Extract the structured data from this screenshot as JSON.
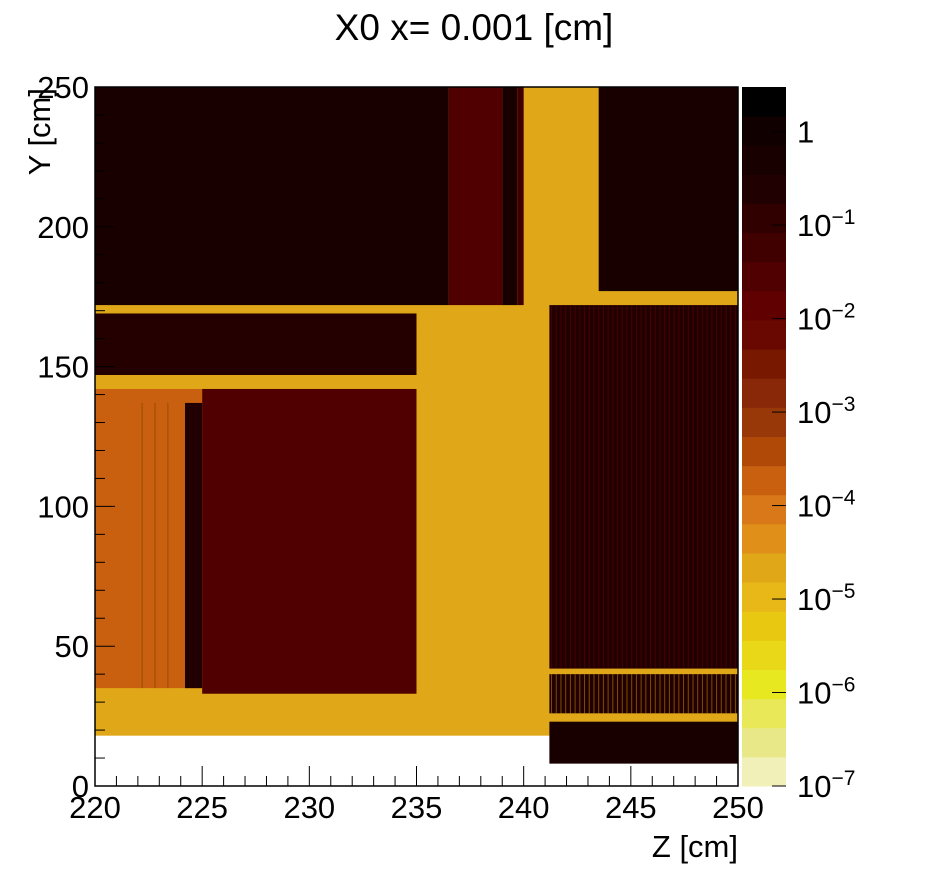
{
  "chart_data": {
    "type": "heatmap",
    "title": "X0 x=  0.001 [cm]",
    "xlabel": "Z [cm]",
    "ylabel": "Y [cm]",
    "xlim": [
      220,
      250
    ],
    "ylim": [
      0,
      250
    ],
    "x_ticks": [
      "220",
      "225",
      "230",
      "235",
      "240",
      "245",
      "250"
    ],
    "x_tick_values": [
      220,
      225,
      230,
      235,
      240,
      245,
      250
    ],
    "y_ticks": [
      "0",
      "50",
      "100",
      "150",
      "200",
      "250"
    ],
    "y_tick_values": [
      0,
      50,
      100,
      150,
      200,
      250
    ],
    "colorbar": {
      "scale": "log",
      "range": [
        1e-07,
        3
      ],
      "tick_values": [
        1e-07,
        1e-06,
        1e-05,
        0.0001,
        0.001,
        0.01,
        0.1,
        1
      ],
      "tick_labels": [
        {
          "base": "10",
          "exp": "−7"
        },
        {
          "base": "10",
          "exp": "−6"
        },
        {
          "base": "10",
          "exp": "−5"
        },
        {
          "base": "10",
          "exp": "−4"
        },
        {
          "base": "10",
          "exp": "−3"
        },
        {
          "base": "10",
          "exp": "−2"
        },
        {
          "base": "10",
          "exp": "−1"
        },
        {
          "base": "1",
          "exp": ""
        }
      ],
      "colors": [
        "#f0f0b8",
        "#e8e888",
        "#e8e858",
        "#e8e820",
        "#e8d818",
        "#e8c810",
        "#e8b818",
        "#e0a818",
        "#e09018",
        "#d87818",
        "#c86010",
        "#b04808",
        "#983808",
        "#882808",
        "#781800",
        "#680800",
        "#600000",
        "#500000",
        "#400000",
        "#300000",
        "#200000",
        "#180000",
        "#100000",
        "#000000"
      ]
    },
    "regions": [
      {
        "z": [
          220,
          250
        ],
        "y": [
          8,
          18
        ],
        "value": "empty"
      },
      {
        "z": [
          220,
          250
        ],
        "y": [
          18,
          250
        ],
        "value": 3e-05
      },
      {
        "z": [
          220,
          235
        ],
        "y": [
          172,
          250
        ],
        "value": 0.5
      },
      {
        "z": [
          235,
          236.5
        ],
        "y": [
          172,
          250
        ],
        "value": 0.5
      },
      {
        "z": [
          236.5,
          239
        ],
        "y": [
          172,
          250
        ],
        "value": 0.03
      },
      {
        "z": [
          239,
          239.7
        ],
        "y": [
          172,
          250
        ],
        "value": 0.5
      },
      {
        "z": [
          239.7,
          240
        ],
        "y": [
          172,
          250
        ],
        "value": 0.05
      },
      {
        "z": [
          243.5,
          250
        ],
        "y": [
          177,
          250
        ],
        "value": 0.5
      },
      {
        "z": [
          220,
          235
        ],
        "y": [
          147,
          169
        ],
        "value": 0.3
      },
      {
        "z": [
          220,
          225
        ],
        "y": [
          35,
          142
        ],
        "value": 0.0002
      },
      {
        "z": [
          225,
          235
        ],
        "y": [
          33,
          142
        ],
        "value": 0.03
      },
      {
        "z": [
          224.2,
          225
        ],
        "y": [
          35,
          137
        ],
        "value": 0.2
      },
      {
        "z": [
          241.2,
          250
        ],
        "y": [
          42,
          172
        ],
        "value": 0.3
      },
      {
        "z": [
          241.2,
          250
        ],
        "y": [
          26,
          40
        ],
        "value": 0.3
      },
      {
        "z": [
          241.2,
          250
        ],
        "y": [
          8,
          23
        ],
        "value": 0.5
      }
    ]
  }
}
